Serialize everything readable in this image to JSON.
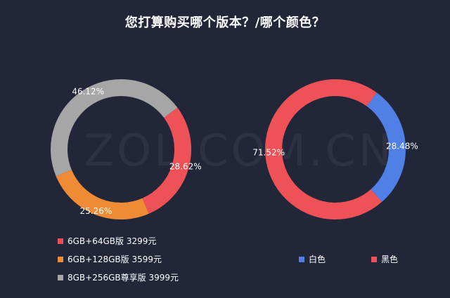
{
  "title": "您打算购买哪个版本？/哪个颜色？",
  "watermark": "ZOL.COM.CN",
  "chart_data": [
    {
      "type": "pie",
      "slices": [
        {
          "label": "6GB+64GB版 3299元",
          "value": 28.62,
          "value_label": "28.62%",
          "color": "#ee5257"
        },
        {
          "label": "6GB+128GB版 3599元",
          "value": 25.26,
          "value_label": "25.26%",
          "color": "#ef8a35"
        },
        {
          "label": "8GB+256GB尊享版 3999元",
          "value": 46.12,
          "value_label": "46.12%",
          "color": "#a6a6a6"
        }
      ],
      "legend_placement": "bottom-left"
    },
    {
      "type": "pie",
      "slices": [
        {
          "label": "白色",
          "value": 28.48,
          "value_label": "28.48%",
          "color": "#5080e6"
        },
        {
          "label": "黑色",
          "value": 71.52,
          "value_label": "71.52%",
          "color": "#ee5257"
        }
      ],
      "legend_placement": "bottom"
    }
  ]
}
